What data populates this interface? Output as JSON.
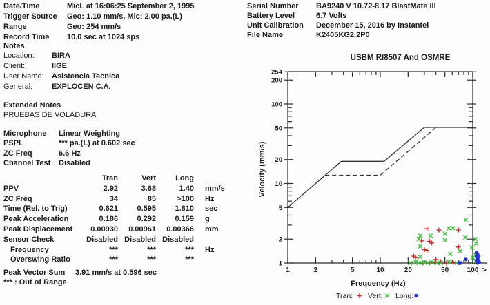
{
  "recorder_info": {
    "rows": [
      {
        "label": "Date/Time",
        "value": "MicL at 16:06:25 September 2, 1995"
      },
      {
        "label": "Trigger Source",
        "value": "Geo: 1.10 mm/s, Mic: 2.00 pa.(L)"
      },
      {
        "label": "Range",
        "value": "Geo: 254 mm/s"
      },
      {
        "label": "Record Time",
        "value": "10.0 sec at 1024 sps"
      }
    ]
  },
  "notes": {
    "title": "Notes",
    "rows": [
      {
        "label": "Location:",
        "value": "BIRA"
      },
      {
        "label": "Client:",
        "value": "IIGE"
      },
      {
        "label": "User Name:",
        "value": "Asistencia Tecnica"
      },
      {
        "label": "General:",
        "value": "EXPLOCEN C.A."
      }
    ]
  },
  "extended_notes": {
    "title": "Extended Notes",
    "value": "PRUEBAS DE VOLADURA"
  },
  "microphone_info": {
    "rows": [
      {
        "label": "Microphone",
        "value": "Linear Weighting"
      },
      {
        "label": "PSPL",
        "value": "*** pa.(L) at 0.602 sec"
      },
      {
        "label": "ZC Freq",
        "value": "6.6 Hz"
      },
      {
        "label": "Channel Test",
        "value": "Disabled"
      }
    ]
  },
  "results_table": {
    "columns": [
      "Tran",
      "Vert",
      "Long"
    ],
    "rows": [
      {
        "label": "PPV",
        "values": [
          "2.92",
          "3.68",
          "1.40"
        ],
        "unit": "mm/s",
        "indent": false
      },
      {
        "label": "ZC Freq",
        "values": [
          "34",
          "85",
          ">100"
        ],
        "unit": "Hz",
        "indent": false
      },
      {
        "label": "Time (Rel. to Trig)",
        "values": [
          "0.621",
          "0.595",
          "1.810"
        ],
        "unit": "sec",
        "indent": false
      },
      {
        "label": "Peak Acceleration",
        "values": [
          "0.186",
          "0.292",
          "0.159"
        ],
        "unit": "g",
        "indent": false
      },
      {
        "label": "Peak Displacement",
        "values": [
          "0.00930",
          "0.00961",
          "0.00366"
        ],
        "unit": "mm",
        "indent": false
      },
      {
        "label": "Sensor Check",
        "values": [
          "Disabled",
          "Disabled",
          "Disabled"
        ],
        "unit": "",
        "indent": false
      },
      {
        "label": "Frequency",
        "values": [
          "***",
          "***",
          "***"
        ],
        "unit": "Hz",
        "indent": true
      },
      {
        "label": "Overswing Ratio",
        "values": [
          "***",
          "***",
          "***"
        ],
        "unit": "",
        "indent": true
      }
    ]
  },
  "peak_vector_sum": {
    "label": "Peak Vector Sum",
    "value": "3.91 mm/s at 0.596 sec"
  },
  "footnote": {
    "symbol": "***",
    "text": ": Out of Range"
  },
  "unit_info": {
    "rows": [
      {
        "label": "Serial Number",
        "value": "BA9240 V 10.72-8.17 BlastMate III"
      },
      {
        "label": "Battery Level",
        "value": "6.7 Volts"
      },
      {
        "label": "Unit Calibration",
        "value": "December 15, 2016 by Instantel"
      },
      {
        "label": "File Name",
        "value": "K2405KG2.2P0"
      }
    ]
  },
  "chart_data": {
    "type": "scatter",
    "title": "USBM RI8507 And OSMRE",
    "xlabel": "Frequency (Hz)",
    "ylabel": "Velocity (mm/s)",
    "x_scale": "log",
    "y_scale": "log",
    "xlim": [
      1,
      100
    ],
    "ylim": [
      1,
      254
    ],
    "overflow_label": ">",
    "x_ticks_major": [
      1,
      2,
      5,
      10,
      20,
      50,
      100
    ],
    "x_ticks_minor": [
      3,
      4,
      6,
      7,
      8,
      9,
      30,
      40,
      60,
      70,
      80,
      90
    ],
    "y_ticks_major": [
      1,
      2,
      5,
      10,
      20,
      50,
      100,
      200,
      254
    ],
    "y_ticks_minor": [
      3,
      4,
      6,
      7,
      8,
      9,
      30,
      40,
      60,
      70,
      80,
      90
    ],
    "limit_curves": [
      {
        "name": "USBM RI8507",
        "style": "solid",
        "points": [
          [
            1,
            5
          ],
          [
            3.8,
            19
          ],
          [
            11,
            19
          ],
          [
            30,
            50.8
          ],
          [
            100,
            50.8
          ]
        ]
      },
      {
        "name": "OSMRE",
        "style": "dashed",
        "points": [
          [
            2.54,
            12.7
          ],
          [
            10,
            12.7
          ],
          [
            40,
            50.8
          ]
        ]
      }
    ],
    "series": [
      {
        "name": "Tran",
        "marker": "plus",
        "color": "#cc2b2b",
        "points": [
          [
            32,
            2.7
          ],
          [
            43,
            2.6
          ],
          [
            70,
            2.6
          ],
          [
            28,
            1.9
          ],
          [
            34,
            1.87
          ],
          [
            36,
            1.79
          ],
          [
            30,
            1.47
          ],
          [
            32,
            1.44
          ],
          [
            23,
            1.22
          ],
          [
            24,
            1.17
          ],
          [
            70,
            1.59
          ],
          [
            40,
            1.11
          ],
          [
            29,
            1.0
          ],
          [
            34,
            1.0
          ],
          [
            39,
            1.02
          ],
          [
            45,
            1.04
          ],
          [
            52,
            1.0
          ],
          [
            61,
            1.02
          ]
        ]
      },
      {
        "name": "Vert",
        "marker": "cross",
        "color": "#35c135",
        "points": [
          [
            27,
            2.2
          ],
          [
            35,
            2.2
          ],
          [
            26,
            2.0
          ],
          [
            27,
            1.62
          ],
          [
            27,
            1.2
          ],
          [
            24,
            1.04
          ],
          [
            26,
            1.0
          ],
          [
            28,
            1.0
          ],
          [
            30,
            1.02
          ],
          [
            33,
            1.0
          ],
          [
            36,
            1.04
          ],
          [
            41,
            1.0
          ],
          [
            45,
            1.0
          ],
          [
            50,
            2.33
          ],
          [
            50,
            1.94
          ],
          [
            55,
            2.74
          ],
          [
            61,
            2.74
          ],
          [
            55,
            1.04
          ],
          [
            73,
            1.41
          ],
          [
            67,
            1.0
          ],
          [
            84,
            3.5
          ],
          [
            83,
            2.1
          ],
          [
            107,
            2.0
          ],
          [
            109,
            1.76
          ],
          [
            98,
            1.56
          ],
          [
            107,
            1.27
          ],
          [
            100,
            1.17
          ],
          [
            107,
            1.06
          ],
          [
            21,
            1.0
          ],
          [
            57,
            1.3
          ]
        ]
      },
      {
        "name": "Long",
        "marker": "dot",
        "color": "#2432cc",
        "points": [
          [
            71,
            1.0
          ],
          [
            84,
            1.11
          ],
          [
            110,
            1.35
          ],
          [
            113,
            1.27
          ],
          [
            116,
            1.22
          ],
          [
            113,
            1.15
          ],
          [
            110,
            1.08
          ],
          [
            116,
            1.06
          ],
          [
            113,
            1.0
          ],
          [
            117,
            1.02
          ],
          [
            110,
            1.2
          ],
          [
            74,
            1.0
          ]
        ]
      }
    ],
    "legend": [
      {
        "label": "Tran:",
        "marker": "plus",
        "color": "#cc2b2b"
      },
      {
        "label": "Vert:",
        "marker": "cross",
        "color": "#35c135"
      },
      {
        "label": "Long:",
        "marker": "dot",
        "color": "#2432cc"
      }
    ],
    "legend_position": "bottom"
  }
}
